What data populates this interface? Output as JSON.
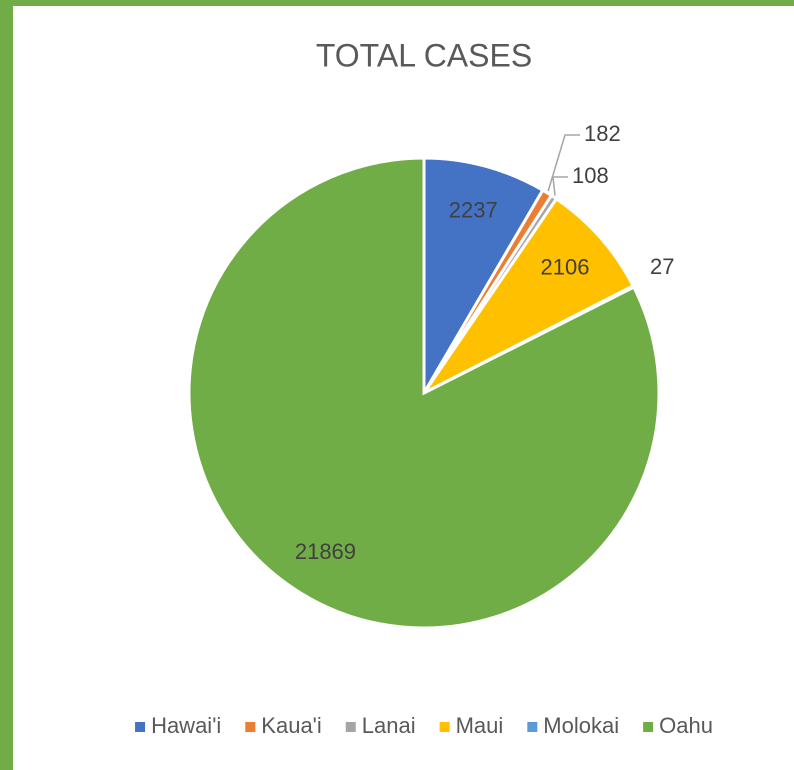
{
  "chart_data": {
    "type": "pie",
    "title": "TOTAL CASES",
    "categories": [
      "Hawai'i",
      "Kaua'i",
      "Lanai",
      "Maui",
      "Molokai",
      "Oahu"
    ],
    "values": [
      2237,
      182,
      108,
      2106,
      27,
      21869
    ],
    "colors": [
      "#4472c4",
      "#ed7d31",
      "#a5a5a5",
      "#ffc000",
      "#5b9bd5",
      "#70ad47"
    ],
    "legend": "bottom"
  }
}
